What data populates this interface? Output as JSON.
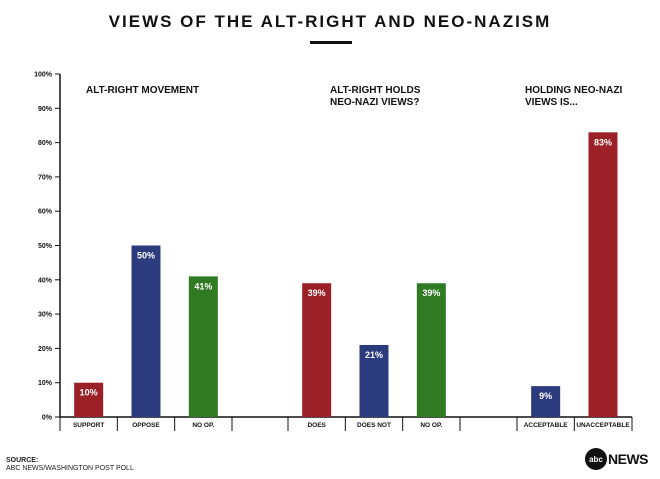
{
  "title": "VIEWS OF THE ALT-RIGHT AND NEO-NAZISM",
  "source_label": "SOURCE:",
  "source_text": "ABC NEWS/WASHINGTON POST POLL",
  "logo": {
    "mark": "abc",
    "word": "NEWS"
  },
  "colors": {
    "red": "#9b2027",
    "blue": "#2c3b7e",
    "green": "#2f7a22"
  },
  "chart_data": {
    "type": "bar",
    "ylim": [
      0,
      100
    ],
    "yticks": [
      "0%",
      "10%",
      "20%",
      "30%",
      "40%",
      "50%",
      "60%",
      "70%",
      "80%",
      "90%",
      "100%"
    ],
    "grid": false,
    "groups": [
      {
        "title_lines": [
          "ALT-RIGHT MOVEMENT"
        ],
        "bars": [
          {
            "category": "SUPPORT",
            "value": 10,
            "label": "10%",
            "color": "#9b2027"
          },
          {
            "category": "OPPOSE",
            "value": 50,
            "label": "50%",
            "color": "#2c3b7e"
          },
          {
            "category": "NO OP.",
            "value": 41,
            "label": "41%",
            "color": "#2f7a22"
          }
        ]
      },
      {
        "title_lines": [
          "ALT-RIGHT HOLDS",
          "NEO-NAZI VIEWS?"
        ],
        "bars": [
          {
            "category": "DOES",
            "value": 39,
            "label": "39%",
            "color": "#9b2027"
          },
          {
            "category": "DOES NOT",
            "value": 21,
            "label": "21%",
            "color": "#2c3b7e"
          },
          {
            "category": "NO OP.",
            "value": 39,
            "label": "39%",
            "color": "#2f7a22"
          }
        ]
      },
      {
        "title_lines": [
          "HOLDING NEO-NAZI",
          "VIEWS IS..."
        ],
        "bars": [
          {
            "category": "ACCEPTABLE",
            "value": 9,
            "label": "9%",
            "color": "#2c3b7e"
          },
          {
            "category": "UNACCEPTABLE",
            "value": 83,
            "label": "83%",
            "color": "#9b2027"
          }
        ]
      }
    ]
  }
}
